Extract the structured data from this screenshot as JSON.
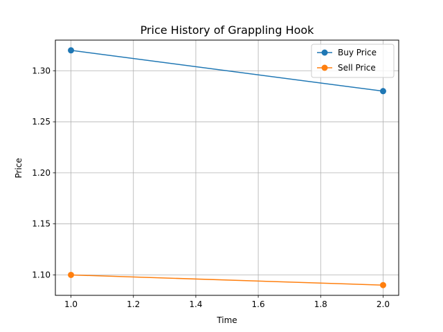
{
  "chart_data": {
    "type": "line",
    "title": "Price History of Grappling Hook",
    "xlabel": "Time",
    "ylabel": "Price",
    "xlim": [
      0.95,
      2.05
    ],
    "ylim": [
      1.08,
      1.33
    ],
    "xticks": [
      1.0,
      1.2,
      1.4,
      1.6,
      1.8,
      2.0
    ],
    "xtick_labels": [
      "1.0",
      "1.2",
      "1.4",
      "1.6",
      "1.8",
      "2.0"
    ],
    "yticks": [
      1.1,
      1.15,
      1.2,
      1.25,
      1.3
    ],
    "ytick_labels": [
      "1.10",
      "1.15",
      "1.20",
      "1.25",
      "1.30"
    ],
    "grid": true,
    "legend_position": "top-right",
    "series": [
      {
        "name": "Buy Price",
        "color": "#1f77b4",
        "x": [
          1,
          2
        ],
        "y": [
          1.32,
          1.28
        ]
      },
      {
        "name": "Sell Price",
        "color": "#ff7f0e",
        "x": [
          1,
          2
        ],
        "y": [
          1.1,
          1.09
        ]
      }
    ]
  }
}
